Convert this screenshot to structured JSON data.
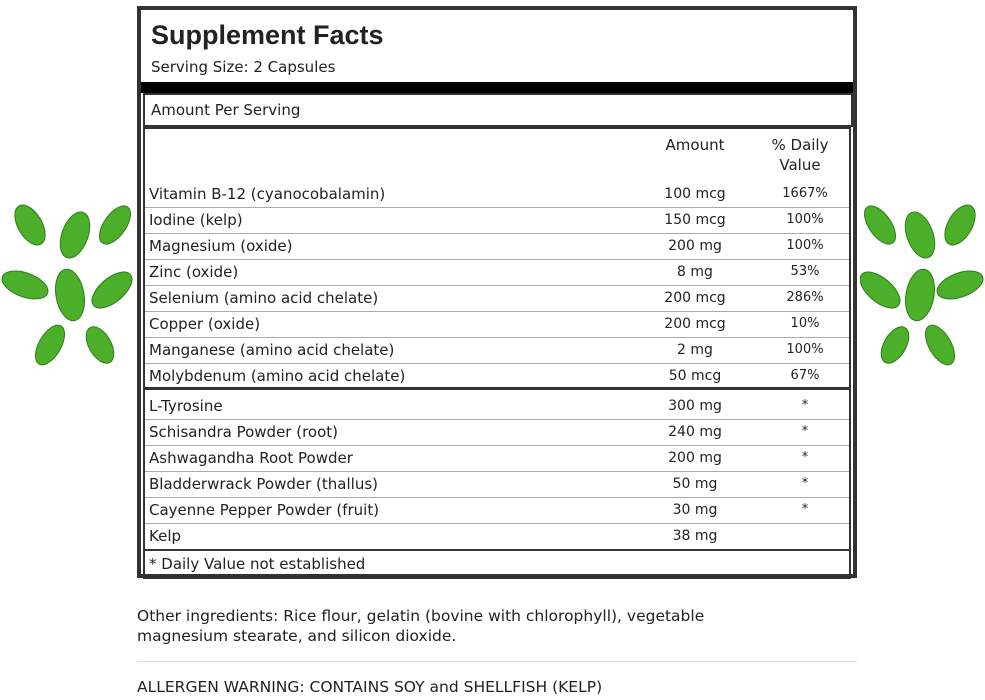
{
  "header": {
    "title": "Supplement Facts",
    "serving_size": "Serving Size: 2 Capsules"
  },
  "table": {
    "amount_per_serving": "Amount Per Serving",
    "columns": [
      "Amount",
      "% Daily Value"
    ],
    "rows": [
      [
        "Vitamin B-12 (cyanocobalamin)",
        "100 mcg",
        "1667%"
      ],
      [
        "Iodine (kelp)",
        "150 mcg",
        "100%"
      ],
      [
        "Magnesium (oxide)",
        "200 mg",
        "100%"
      ],
      [
        "Zinc (oxide)",
        "8 mg",
        "53%"
      ],
      [
        "Selenium (amino acid chelate)",
        "200 mcg",
        "286%"
      ],
      [
        "Copper (oxide)",
        "200 mcg",
        "10%"
      ],
      [
        "Manganese (amino acid chelate)",
        "2 mg",
        "100%"
      ],
      [
        "Molybdenum (amino acid chelate)",
        "50 mcg",
        "67%"
      ],
      [
        "L-Tyrosine",
        "300 mg",
        "*"
      ],
      [
        "Schisandra Powder (root)",
        "240 mg",
        "*"
      ],
      [
        "Ashwagandha Root Powder",
        "200 mg",
        "*"
      ],
      [
        "Bladderwrack Powder (thallus)",
        "50 mg",
        "*"
      ],
      [
        "Cayenne Pepper Powder (fruit)",
        "30 mg",
        "*"
      ],
      [
        "Kelp",
        "38 mg"
      ]
    ],
    "footnote": "* Daily Value not established"
  },
  "other_ingredients": "Other ingredients: Rice flour, gelatin (bovine with chlorophyll), vegetable magnesium stearate, and silicon dioxide.",
  "allergen_warning": "ALLERGEN WARNING: CONTAINS SOY and SHELLFISH (KELP)"
}
